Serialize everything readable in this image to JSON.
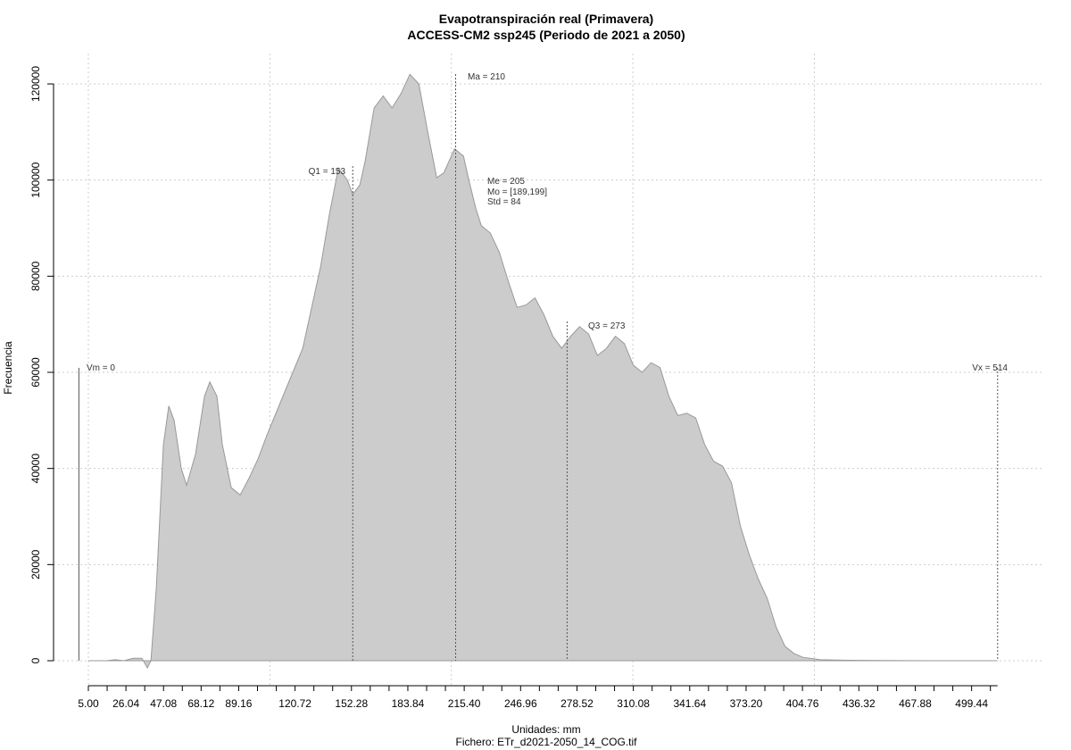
{
  "chart_data": {
    "type": "area",
    "title": "Evapotranspiración real (Primavera)",
    "subtitle": "ACCESS-CM2 ssp245 (Periodo de 2021 a 2050)",
    "xlabel": "Unidades: mm",
    "caption": "Fichero: ETr_d2021-2050_14_COG.tif",
    "ylabel": "Frecuencia",
    "xlim": [
      5,
      520
    ],
    "ylim": [
      0,
      125000
    ],
    "grid": true,
    "x_ticks": [
      "5.00",
      "26.04",
      "47.08",
      "68.12",
      "89.16",
      "120.72",
      "152.28",
      "183.84",
      "215.40",
      "246.96",
      "278.52",
      "310.08",
      "341.64",
      "373.20",
      "404.76",
      "436.32",
      "467.88",
      "499.44"
    ],
    "y_ticks": [
      "0",
      "20000",
      "40000",
      "60000",
      "80000",
      "100000",
      "120000"
    ],
    "series": [
      {
        "x": [
          5,
          15,
          20,
          25,
          30,
          35,
          38,
          40,
          43,
          47,
          50,
          53,
          57,
          60,
          65,
          70,
          73,
          77,
          80,
          85,
          90,
          95,
          100,
          105,
          115,
          125,
          135,
          140,
          145,
          150,
          153,
          157,
          160,
          165,
          170,
          175,
          180,
          185,
          190,
          195,
          200,
          204,
          210,
          215,
          218,
          222,
          225,
          230,
          235,
          240,
          245,
          250,
          255,
          260,
          265,
          270,
          275,
          280,
          285,
          290,
          295,
          300,
          305,
          310,
          315,
          320,
          325,
          330,
          335,
          340,
          345,
          350,
          355,
          360,
          365,
          370,
          375,
          380,
          385,
          390,
          395,
          400,
          405,
          415,
          430,
          450,
          480,
          510,
          514
        ],
        "y": [
          0,
          0,
          200,
          0,
          500,
          500,
          -1500,
          0,
          15000,
          45000,
          53000,
          50000,
          40000,
          36500,
          43000,
          55000,
          58000,
          55000,
          45000,
          36000,
          34500,
          38000,
          42000,
          47000,
          56000,
          65000,
          82000,
          93000,
          102500,
          100000,
          97000,
          99000,
          104000,
          115000,
          117500,
          115000,
          118000,
          122000,
          120000,
          110000,
          100500,
          101500,
          106500,
          105000,
          100000,
          94000,
          90500,
          89000,
          85000,
          79000,
          73500,
          74000,
          75500,
          72000,
          67500,
          65000,
          67500,
          69500,
          68000,
          63500,
          65000,
          67500,
          66000,
          61500,
          60000,
          62000,
          61000,
          55000,
          51000,
          51500,
          50500,
          45000,
          41500,
          40500,
          37000,
          28000,
          22000,
          17000,
          13000,
          7000,
          3000,
          1500,
          700,
          200,
          100,
          50,
          0,
          0,
          0
        ]
      }
    ],
    "annotations": [
      {
        "label": "Vm = 0",
        "value": 0
      },
      {
        "label": "Q1 = 153",
        "value": 153
      },
      {
        "label": "Ma = 210",
        "value": 210
      },
      {
        "label": "Me = 205",
        "value": 205
      },
      {
        "label": "Mo = [189,199]",
        "value": 194
      },
      {
        "label": "Std = 84",
        "value": 84
      },
      {
        "label": "Q3 = 273",
        "value": 273
      },
      {
        "label": "Vx = 514",
        "value": 514
      }
    ],
    "colors": {
      "fill": "#cccccc",
      "stroke": "#999999",
      "grid": "#cccccc"
    }
  }
}
